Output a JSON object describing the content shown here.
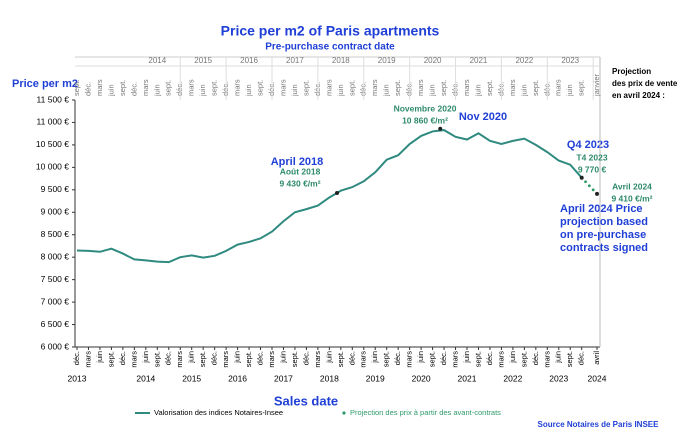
{
  "chart_data": {
    "type": "line",
    "title": "Price per m2 of Paris apartments",
    "subtitle": "Pre-purchase contract date",
    "y_label": "Price per m2",
    "x_label": "Sales date",
    "source": "Source Notaires de Paris INSEE",
    "side_note": [
      "Projection",
      "des prix de vente",
      "en avril 2024 :"
    ],
    "xlim": [
      "2012-12",
      "2024-04"
    ],
    "ylim": [
      6000,
      11500
    ],
    "yticks": [
      {
        "value": 6000,
        "label": "6 000 €"
      },
      {
        "value": 6500,
        "label": "6 500 €"
      },
      {
        "value": 7000,
        "label": "7 000 €"
      },
      {
        "value": 7500,
        "label": "7 500 €"
      },
      {
        "value": 8000,
        "label": "8 000 €"
      },
      {
        "value": 8500,
        "label": "8 500 €"
      },
      {
        "value": 9000,
        "label": "9 000 €"
      },
      {
        "value": 9500,
        "label": "9 500 €"
      },
      {
        "value": 10000,
        "label": "10 000 €"
      },
      {
        "value": 10500,
        "label": "10 500 €"
      },
      {
        "value": 11000,
        "label": "11 000 €"
      },
      {
        "value": 11500,
        "label": "11 500 €"
      }
    ],
    "xticks": [
      {
        "value": "2012-12",
        "label": "déc."
      },
      {
        "value": "2013-03",
        "label": "mars"
      },
      {
        "value": "2013-06",
        "label": "juin"
      },
      {
        "value": "2013-09",
        "label": "sept."
      },
      {
        "value": "2013-12",
        "label": "déc."
      },
      {
        "value": "2014-03",
        "label": "mars"
      },
      {
        "value": "2014-06",
        "label": "juin"
      },
      {
        "value": "2014-09",
        "label": "sept."
      },
      {
        "value": "2014-12",
        "label": "déc."
      },
      {
        "value": "2015-03",
        "label": "mars"
      },
      {
        "value": "2015-06",
        "label": "juin"
      },
      {
        "value": "2015-09",
        "label": "sept."
      },
      {
        "value": "2015-12",
        "label": "déc."
      },
      {
        "value": "2016-03",
        "label": "mars"
      },
      {
        "value": "2016-06",
        "label": "juin"
      },
      {
        "value": "2016-09",
        "label": "sept."
      },
      {
        "value": "2016-12",
        "label": "déc."
      },
      {
        "value": "2017-03",
        "label": "mars"
      },
      {
        "value": "2017-06",
        "label": "juin"
      },
      {
        "value": "2017-09",
        "label": "sept."
      },
      {
        "value": "2017-12",
        "label": "déc."
      },
      {
        "value": "2018-03",
        "label": "mars"
      },
      {
        "value": "2018-06",
        "label": "juin"
      },
      {
        "value": "2018-09",
        "label": "sept."
      },
      {
        "value": "2018-12",
        "label": "déc."
      },
      {
        "value": "2019-03",
        "label": "mars"
      },
      {
        "value": "2019-06",
        "label": "juin"
      },
      {
        "value": "2019-09",
        "label": "sept."
      },
      {
        "value": "2019-12",
        "label": "déc."
      },
      {
        "value": "2020-03",
        "label": "mars"
      },
      {
        "value": "2020-06",
        "label": "juin"
      },
      {
        "value": "2020-09",
        "label": "sept."
      },
      {
        "value": "2020-12",
        "label": "déc."
      },
      {
        "value": "2021-03",
        "label": "mars"
      },
      {
        "value": "2021-06",
        "label": "juin"
      },
      {
        "value": "2021-09",
        "label": "sept."
      },
      {
        "value": "2021-12",
        "label": "déc."
      },
      {
        "value": "2022-03",
        "label": "mars"
      },
      {
        "value": "2022-06",
        "label": "juin"
      },
      {
        "value": "2022-09",
        "label": "sept."
      },
      {
        "value": "2022-12",
        "label": "déc."
      },
      {
        "value": "2023-03",
        "label": "mars"
      },
      {
        "value": "2023-06",
        "label": "juin"
      },
      {
        "value": "2023-09",
        "label": "sept."
      },
      {
        "value": "2023-12",
        "label": "déc."
      },
      {
        "value": "2024-04",
        "label": "avril"
      }
    ],
    "x_years": [
      {
        "value": "2012-12",
        "label": "2013"
      },
      {
        "value": "2014-06",
        "label": "2014"
      },
      {
        "value": "2015-06",
        "label": "2015"
      },
      {
        "value": "2016-06",
        "label": "2016"
      },
      {
        "value": "2017-06",
        "label": "2017"
      },
      {
        "value": "2018-06",
        "label": "2018"
      },
      {
        "value": "2019-06",
        "label": "2019"
      },
      {
        "value": "2020-06",
        "label": "2020"
      },
      {
        "value": "2021-06",
        "label": "2021"
      },
      {
        "value": "2022-06",
        "label": "2022"
      },
      {
        "value": "2023-06",
        "label": "2023"
      },
      {
        "value": "2024-04",
        "label": "2024"
      }
    ],
    "top_xticks": [
      {
        "value": "2012-12",
        "label": "sept."
      },
      {
        "value": "2013-03",
        "label": "déc."
      },
      {
        "value": "2013-06",
        "label": "mars"
      },
      {
        "value": "2013-09",
        "label": "juin"
      },
      {
        "value": "2013-12",
        "label": "sept."
      },
      {
        "value": "2014-03",
        "label": "déc."
      },
      {
        "value": "2014-06",
        "label": "mars"
      },
      {
        "value": "2014-09",
        "label": "juin"
      },
      {
        "value": "2014-12",
        "label": "sept."
      },
      {
        "value": "2015-03",
        "label": "déc."
      },
      {
        "value": "2015-06",
        "label": "mars"
      },
      {
        "value": "2015-09",
        "label": "juin"
      },
      {
        "value": "2015-12",
        "label": "sept."
      },
      {
        "value": "2016-03",
        "label": "déc."
      },
      {
        "value": "2016-06",
        "label": "mars"
      },
      {
        "value": "2016-09",
        "label": "juin"
      },
      {
        "value": "2016-12",
        "label": "sept."
      },
      {
        "value": "2017-03",
        "label": "déc."
      },
      {
        "value": "2017-06",
        "label": "mars"
      },
      {
        "value": "2017-09",
        "label": "juin"
      },
      {
        "value": "2017-12",
        "label": "sept."
      },
      {
        "value": "2018-03",
        "label": "déc."
      },
      {
        "value": "2018-06",
        "label": "mars"
      },
      {
        "value": "2018-09",
        "label": "juin"
      },
      {
        "value": "2018-12",
        "label": "sept."
      },
      {
        "value": "2019-03",
        "label": "déc."
      },
      {
        "value": "2019-06",
        "label": "mars"
      },
      {
        "value": "2019-09",
        "label": "juin"
      },
      {
        "value": "2019-12",
        "label": "sept."
      },
      {
        "value": "2020-03",
        "label": "déc."
      },
      {
        "value": "2020-06",
        "label": "mars"
      },
      {
        "value": "2020-09",
        "label": "juin"
      },
      {
        "value": "2020-12",
        "label": "sept."
      },
      {
        "value": "2021-03",
        "label": "déc."
      },
      {
        "value": "2021-06",
        "label": "mars"
      },
      {
        "value": "2021-09",
        "label": "juin"
      },
      {
        "value": "2021-12",
        "label": "sept."
      },
      {
        "value": "2022-03",
        "label": "déc."
      },
      {
        "value": "2022-06",
        "label": "mars"
      },
      {
        "value": "2022-09",
        "label": "juin"
      },
      {
        "value": "2022-12",
        "label": "sept."
      },
      {
        "value": "2023-03",
        "label": "déc."
      },
      {
        "value": "2023-06",
        "label": "mars"
      },
      {
        "value": "2023-09",
        "label": "juin"
      },
      {
        "value": "2023-12",
        "label": "sept."
      },
      {
        "value": "2024-04",
        "label": "janvier"
      }
    ],
    "top_years": [
      {
        "value": "2014-09",
        "label": "2014"
      },
      {
        "value": "2015-09",
        "label": "2015"
      },
      {
        "value": "2016-09",
        "label": "2016"
      },
      {
        "value": "2017-09",
        "label": "2017"
      },
      {
        "value": "2018-09",
        "label": "2018"
      },
      {
        "value": "2019-09",
        "label": "2019"
      },
      {
        "value": "2020-09",
        "label": "2020"
      },
      {
        "value": "2021-09",
        "label": "2021"
      },
      {
        "value": "2022-09",
        "label": "2022"
      },
      {
        "value": "2023-09",
        "label": "2023"
      }
    ],
    "series": [
      {
        "name": "Valorisation des indices Notaires-Insee",
        "color": "#2f8a80",
        "style": "line",
        "x": [
          "2012-12",
          "2013-03",
          "2013-06",
          "2013-09",
          "2013-12",
          "2014-03",
          "2014-06",
          "2014-09",
          "2014-12",
          "2015-03",
          "2015-06",
          "2015-09",
          "2015-12",
          "2016-03",
          "2016-06",
          "2016-09",
          "2016-12",
          "2017-03",
          "2017-06",
          "2017-09",
          "2017-12",
          "2018-03",
          "2018-06",
          "2018-09",
          "2018-12",
          "2019-03",
          "2019-06",
          "2019-09",
          "2019-12",
          "2020-03",
          "2020-06",
          "2020-09",
          "2020-12",
          "2021-03",
          "2021-06",
          "2021-09",
          "2021-12",
          "2022-03",
          "2022-06",
          "2022-09",
          "2022-12",
          "2023-03",
          "2023-06",
          "2023-09",
          "2023-12"
        ],
        "values": [
          8150,
          8140,
          8120,
          8190,
          8080,
          7950,
          7930,
          7900,
          7890,
          8000,
          8040,
          7990,
          8030,
          8140,
          8280,
          8340,
          8420,
          8570,
          8800,
          9000,
          9070,
          9150,
          9330,
          9480,
          9560,
          9690,
          9890,
          10170,
          10270,
          10520,
          10700,
          10800,
          10830,
          10680,
          10620,
          10760,
          10590,
          10520,
          10590,
          10640,
          10500,
          10340,
          10150,
          10060,
          9770
        ]
      },
      {
        "name": "Projection des prix à partir des avant-contrats",
        "color": "#2e9a6a",
        "style": "dots",
        "x": [
          "2023-12",
          "2024-01",
          "2024-02",
          "2024-03",
          "2024-04"
        ],
        "values": [
          9770,
          9680,
          9590,
          9500,
          9410
        ]
      }
    ],
    "annotations": [
      {
        "x": "2018-08",
        "value": 9430,
        "lines": [
          "Août 2018",
          "9 430 €/m²"
        ],
        "note": "April 2018"
      },
      {
        "x": "2020-11",
        "value": 10860,
        "lines": [
          "Novembre 2020",
          "10 860 €/m²"
        ],
        "note": "Nov 2020"
      },
      {
        "x": "2023-12",
        "value": 9770,
        "lines": [
          "T4 2023",
          "9 770 €"
        ],
        "note": "Q4 2023"
      },
      {
        "x": "2024-04",
        "value": 9410,
        "lines": [
          "Avril 2024",
          "9 410 €/m²"
        ],
        "note": "April 2024 Price projection based on pre-purchase contracts signed"
      }
    ]
  }
}
